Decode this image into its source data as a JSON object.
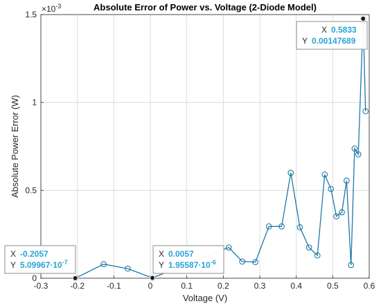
{
  "chart_data": {
    "type": "line",
    "title": "Absolute Error of Power vs. Voltage (2-Diode Model)",
    "xlabel": "Voltage (V)",
    "ylabel": "Absolute Power Error (W)",
    "y_exponent_label": "×10",
    "y_exponent": "-3",
    "xlim": [
      -0.3,
      0.6
    ],
    "ylim": [
      0,
      0.0015
    ],
    "xticks": [
      "-0.3",
      "-0.2",
      "-0.1",
      "0",
      "0.1",
      "0.2",
      "0.3",
      "0.4",
      "0.5",
      "0.6"
    ],
    "yticks": [
      "0",
      "0.5",
      "1",
      "1.5"
    ],
    "grid": true,
    "series": [
      {
        "color": "#1f77a8",
        "marker": "circle",
        "x": [
          -0.2057,
          -0.128,
          -0.062,
          0.0057,
          0.215,
          0.252,
          0.288,
          0.325,
          0.36,
          0.385,
          0.41,
          0.435,
          0.458,
          0.478,
          0.495,
          0.51,
          0.525,
          0.538,
          0.55,
          0.56,
          0.57,
          0.5833,
          0.59
        ],
        "y": [
          5.1e-07,
          8e-05,
          5.5e-05,
          1.9559e-06,
          0.000175,
          9.5e-05,
          9.2e-05,
          0.000295,
          0.000295,
          0.0006,
          0.00029,
          0.000175,
          0.00013,
          0.00059,
          0.000508,
          0.000352,
          0.000375,
          0.000555,
          7.5e-05,
          0.000738,
          0.000705,
          0.00147689,
          0.00095
        ]
      }
    ],
    "datatips": [
      {
        "x_key": "X",
        "x_value": "0.5833",
        "y_key": "Y",
        "y_value": "0.00147689",
        "y_exp": "",
        "x": 0.5833,
        "y": 0.00147689
      },
      {
        "x_key": "X",
        "x_value": "-0.2057",
        "y_key": "Y",
        "y_value": "5.09967·10",
        "y_exp": "-7",
        "x": -0.2057,
        "y": 5.1e-07
      },
      {
        "x_key": "X",
        "x_value": "0.0057",
        "y_key": "Y",
        "y_value": "1.95587·10",
        "y_exp": "-6",
        "x": 0.0057,
        "y": 1.9559e-06
      }
    ],
    "colors": {
      "line": "#1f77a8",
      "tip_value": "#2aa3d8",
      "tip_border": "#8c8c8c",
      "grid": "#dcdcdc"
    }
  }
}
